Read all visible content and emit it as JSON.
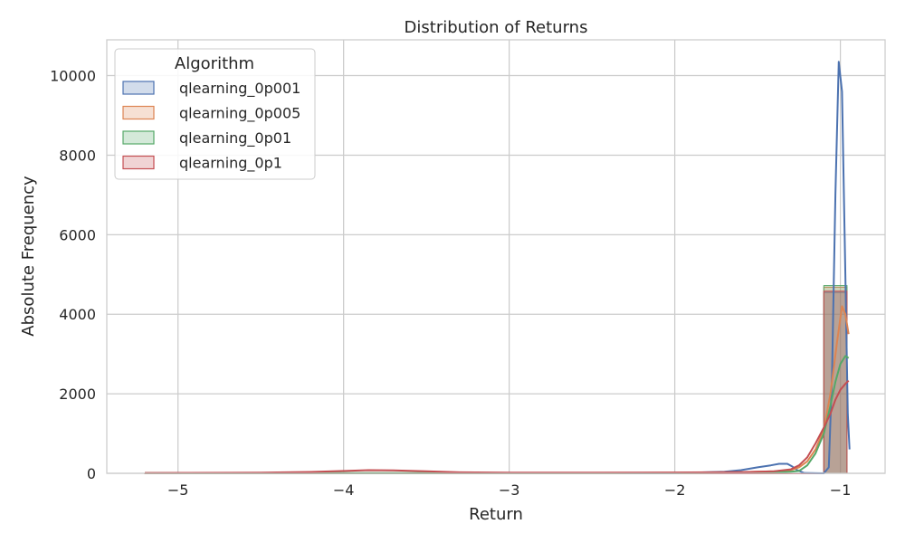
{
  "chart_data": {
    "type": "histogram",
    "title": "Distribution of Returns",
    "xlabel": "Return",
    "ylabel": "Absolute Frequency",
    "xlim": [
      -5.43,
      -0.73
    ],
    "ylim": [
      0,
      10900
    ],
    "x_ticks": [
      -5,
      -4,
      -3,
      -2,
      -1
    ],
    "x_tick_labels": [
      "−5",
      "−4",
      "−3",
      "−2",
      "−1"
    ],
    "y_ticks": [
      0,
      2000,
      4000,
      6000,
      8000,
      10000
    ],
    "y_tick_labels": [
      "0",
      "2000",
      "4000",
      "6000",
      "8000",
      "10000"
    ],
    "grid": true,
    "legend": {
      "title": "Algorithm",
      "placement": "top-left"
    },
    "series": [
      {
        "name": "qlearning_0p001",
        "color": "#4c72b0",
        "bins": [
          [
            -5.2,
            -1.1,
            0
          ],
          [
            -1.1,
            -0.96,
            4550
          ]
        ],
        "kde": [
          [
            -5.2,
            5
          ],
          [
            -2.0,
            5
          ],
          [
            -1.7,
            40
          ],
          [
            -1.6,
            80
          ],
          [
            -1.5,
            150
          ],
          [
            -1.42,
            200
          ],
          [
            -1.37,
            240
          ],
          [
            -1.32,
            240
          ],
          [
            -1.29,
            170
          ],
          [
            -1.26,
            80
          ],
          [
            -1.22,
            10
          ],
          [
            -1.1,
            0
          ],
          [
            -1.07,
            150
          ],
          [
            -1.05,
            2500
          ],
          [
            -1.03,
            7000
          ],
          [
            -1.01,
            10350
          ],
          [
            -0.99,
            9600
          ],
          [
            -0.97,
            5000
          ],
          [
            -0.955,
            1500
          ],
          [
            -0.945,
            600
          ]
        ]
      },
      {
        "name": "qlearning_0p005",
        "color": "#dd8452",
        "bins": [
          [
            -5.2,
            -1.1,
            0
          ],
          [
            -1.1,
            -0.96,
            4680
          ]
        ],
        "kde": [
          [
            -5.2,
            5
          ],
          [
            -2.4,
            5
          ],
          [
            -2.0,
            15
          ],
          [
            -1.6,
            30
          ],
          [
            -1.4,
            50
          ],
          [
            -1.3,
            80
          ],
          [
            -1.25,
            150
          ],
          [
            -1.2,
            300
          ],
          [
            -1.15,
            600
          ],
          [
            -1.1,
            1100
          ],
          [
            -1.06,
            2000
          ],
          [
            -1.02,
            3300
          ],
          [
            -0.99,
            4200
          ],
          [
            -0.97,
            4000
          ],
          [
            -0.95,
            3500
          ]
        ]
      },
      {
        "name": "qlearning_0p01",
        "color": "#55a868",
        "bins": [
          [
            -5.2,
            -1.1,
            0
          ],
          [
            -1.1,
            -0.96,
            4720
          ]
        ],
        "kde": [
          [
            -5.2,
            5
          ],
          [
            -2.0,
            5
          ],
          [
            -1.5,
            15
          ],
          [
            -1.4,
            20
          ],
          [
            -1.3,
            40
          ],
          [
            -1.25,
            60
          ],
          [
            -1.2,
            200
          ],
          [
            -1.15,
            500
          ],
          [
            -1.1,
            1000
          ],
          [
            -1.06,
            1700
          ],
          [
            -1.03,
            2300
          ],
          [
            -1.0,
            2750
          ],
          [
            -0.97,
            2950
          ],
          [
            -0.95,
            2900
          ]
        ]
      },
      {
        "name": "qlearning_0p1",
        "color": "#c44e52",
        "bins": [
          [
            -5.2,
            -1.1,
            0
          ],
          [
            -1.1,
            -0.96,
            4580
          ]
        ],
        "kde": [
          [
            -5.2,
            10
          ],
          [
            -4.5,
            15
          ],
          [
            -4.2,
            35
          ],
          [
            -4.0,
            60
          ],
          [
            -3.85,
            80
          ],
          [
            -3.7,
            75
          ],
          [
            -3.5,
            50
          ],
          [
            -3.3,
            25
          ],
          [
            -3.0,
            15
          ],
          [
            -2.5,
            15
          ],
          [
            -2.0,
            20
          ],
          [
            -1.6,
            30
          ],
          [
            -1.4,
            50
          ],
          [
            -1.3,
            100
          ],
          [
            -1.25,
            200
          ],
          [
            -1.2,
            400
          ],
          [
            -1.15,
            750
          ],
          [
            -1.1,
            1150
          ],
          [
            -1.06,
            1500
          ],
          [
            -1.03,
            1850
          ],
          [
            -1.0,
            2100
          ],
          [
            -0.97,
            2250
          ],
          [
            -0.95,
            2330
          ]
        ]
      }
    ]
  }
}
